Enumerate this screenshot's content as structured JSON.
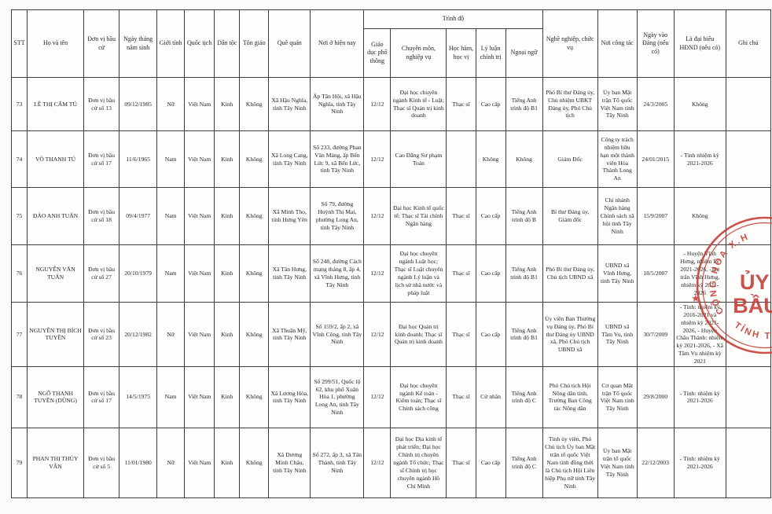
{
  "table": {
    "headers": {
      "stt": "STT",
      "ho_va_ten": "Họ và tên",
      "don_vi_bau_cu": "Đơn vị bầu cử",
      "ngay_thang_nam_sinh": "Ngày tháng năm sinh",
      "gioi_tinh": "Giới tính",
      "quoc_tich": "Quốc tịch",
      "dan_toc": "Dân tộc",
      "ton_giao": "Tôn giáo",
      "que_quan": "Quê quán",
      "noi_o_hien_nay": "Nơi ở hiện nay",
      "trinh_do_group": "Trình độ",
      "giao_duc_pho_thong": "Giáo dục phổ thông",
      "chuyen_mon_nghiep_vu": "Chuyên môn, nghiệp vụ",
      "hoc_ham_hoc_vi": "Học hàm, học vị",
      "ly_luan_chinh_tri": "Lý luận chính trị",
      "ngoai_ngu": "Ngoại ngữ",
      "nghe_nghiep_chuc_vu": "Nghề nghiệp, chức vụ",
      "noi_cong_tac": "Nơi công tác",
      "ngay_vao_dang": "Ngày vào Đảng (nếu có)",
      "la_dai_bieu_hdnd": "Là đại biểu HĐND (nếu có)",
      "ghi_chu": "Ghi chú"
    },
    "rows": [
      {
        "cells": [
          "73",
          "LÊ THỊ CẨM TÚ",
          "Đơn vị bầu cử số 13",
          "09/12/1985",
          "Nữ",
          "Việt Nam",
          "Kinh",
          "Không",
          "Xã Hậu Nghĩa, tỉnh Tây Ninh",
          "Ấp Tân Hội, xã Hậu Nghĩa, tỉnh Tây Ninh",
          "12/12",
          "Đại học chuyên ngành Kinh tế - Luật; Thạc sĩ Quản trị kinh doanh",
          "Thạc sĩ",
          "Cao cấp",
          "Tiếng Anh trình độ B1",
          "Phó Bí thư Đảng ủy, Chủ nhiệm UBKT Đảng ủy, Phó Chủ tịch",
          "Ủy ban Mặt trận Tổ quốc Việt Nam tỉnh Tây Ninh",
          "24/3/2005",
          "Không",
          ""
        ]
      },
      {
        "cells": [
          "74",
          "VÕ THANH TÚ",
          "Đơn vị bầu cử số 17",
          "11/6/1965",
          "Nam",
          "Việt Nam",
          "Kinh",
          "Không",
          "Xã Long Cang, tỉnh Tây Ninh",
          "Số 233, đường Phan Văn Mảng, ấp Bến Lức 9, xã Bến Lức, tỉnh Tây Ninh",
          "12/12",
          "Cao Đẳng Sư phạm Toán",
          "",
          "Không",
          "Không",
          "Giám Đốc",
          "Công ty trách nhiệm hữu hạn một thành viên Hòa Thành Long An",
          "24/01/2015",
          "- Tỉnh nhiệm kỳ 2021-2026",
          ""
        ]
      },
      {
        "cells": [
          "75",
          "ĐÀO ANH TUẤN",
          "Đơn vị bầu cử số 18",
          "09/4/1977",
          "Nam",
          "Việt Nam",
          "Kinh",
          "Không",
          "Xã Minh Thọ, tỉnh Hưng Yên",
          "Số 79, đường Huỳnh Thị Mai, phường Long An, tỉnh Tây Ninh",
          "12/12",
          "Đại học Kinh tế quốc tế; Thạc sĩ Tài chính Ngân hàng",
          "Thạc sĩ",
          "Cao cấp",
          "Tiếng Anh trình độ B",
          "Bí thư Đảng ủy, Giám đốc",
          "Chi nhánh Ngân hàng Chính sách xã hội tỉnh Tây Ninh",
          "15/9/2007",
          "Không",
          ""
        ]
      },
      {
        "cells": [
          "76",
          "NGUYỄN VĂN TUẤN",
          "Đơn vị bầu cử số 27",
          "20/10/1979",
          "Nam",
          "Việt Nam",
          "Kinh",
          "Không",
          "Xã Tân Hưng, tỉnh Tây Ninh",
          "Số 248, đường Cách mạng tháng 8, ấp 4, xã Vĩnh Hưng, tỉnh Tây Ninh",
          "12/12",
          "Đại học chuyên ngành Luật học; Thạc sĩ Luật chuyên ngành Lý luận và lịch sử nhà nước và pháp luật",
          "Thạc sĩ",
          "Cao cấp",
          "Tiếng Anh trình độ B1",
          "Phó Bí thư Đảng ủy, Chủ tịch UBND xã",
          "UBND xã Vĩnh Hưng, tỉnh Tây Ninh",
          "18/5/2007",
          "- Huyện Vĩnh Hưng, nhiệm kỳ 2021-2026, -Thị trấn Vĩnh Hưng, nhiệm kỳ 2021-2026",
          ""
        ]
      },
      {
        "cells": [
          "77",
          "NGUYỄN THỊ BÍCH TUYỀN",
          "Đơn vị bầu cử số 23",
          "20/12/1982",
          "Nữ",
          "Việt Nam",
          "Kinh",
          "Không",
          "Xã Thuận Mỹ, tỉnh Tây Ninh",
          "Số 159/2, ấp 2, xã Vĩnh Công, tỉnh Tây Ninh",
          "12/12",
          "Đại học Quản trị kinh doanh; Thạc sĩ Quản trị kinh doanh",
          "Thạc sĩ",
          "Cao cấp",
          "Tiếng Anh trình độ B1",
          "Ủy viên Ban Thường vụ Đảng ủy, Phó Bí thư Đảng ủy UBND xã, Phó Chủ tịch UBND xã",
          "UBND xã Tầm Vu, tỉnh Tây Ninh",
          "30/7/2009",
          "- Tỉnh: nhiệm kỳ 2016-2021 và nhiệm kỳ 2021-2026, - Huyện Châu Thành: nhiệm kỳ 2021-2026, - Xã Tầm Vu nhiệm kỳ 2021",
          ""
        ]
      },
      {
        "cells": [
          "78",
          "NGÔ THANH TUYỀN (DŨNG)",
          "Đơn vị bầu cử số 17",
          "14/5/1975",
          "Nam",
          "Việt Nam",
          "Kinh",
          "Không",
          "Xã Lương Hòa, tỉnh Tây Ninh",
          "Số 299/51, Quốc lộ 62, khu phố Xuân Hòa 1, phường Long An, tỉnh Tây Ninh",
          "12/12",
          "Đại học chuyên ngành Kế toán - Kiểm toán; Thạc sĩ Chính sách công",
          "Thạc sĩ",
          "Cử nhân",
          "Tiếng Anh trình độ C",
          "Phó Chủ tịch Hội Nông dân tỉnh, Trưởng Ban Công tác Nông dân",
          "Cơ quan Mặt trận Tổ quốc Việt Nam tỉnh Tây Ninh",
          "29/8/2000",
          "- Tỉnh: nhiệm kỳ 2021-2026",
          ""
        ]
      },
      {
        "cells": [
          "79",
          "PHAN THỊ THÚY VÂN",
          "Đơn vị bầu cử số 5",
          "11/01/1980",
          "Nữ",
          "Việt Nam",
          "Kinh",
          "Không",
          "Xã Dương Minh Châu, tỉnh Tây Ninh",
          "Số 272, ấp 3, xã Tân Thành, tỉnh Tây Ninh",
          "12/12",
          "Đại học Địa kinh tế phát triển; Đại học Chính trị chuyên ngành Tổ chức; Thạc sĩ Chính trị học chuyên ngành Hồ Chí Minh",
          "Thạc sĩ",
          "Cao cấp",
          "Tiếng Anh trình độ C",
          "Tỉnh ủy viên, Phó Chủ tịch Ủy ban Mặt trận tổ quốc Việt Nam tỉnh đồng thời là Chủ tịch Hội Liên hiệp Phụ nữ tỉnh Tây Ninh",
          "Ủy ban Mặt trận tổ quốc Việt Nam tỉnh Tây Ninh",
          "22/12/2003",
          "- Tỉnh: nhiệm kỳ 2021-2026",
          ""
        ]
      }
    ]
  },
  "stamp": {
    "color": "#c53a33",
    "arc_top_text": "CỘNG HÒA X.H",
    "center_line1": "ỦY B",
    "center_line2": "BẦU C",
    "arc_bottom_text": "TỈNH T",
    "star": "★"
  }
}
